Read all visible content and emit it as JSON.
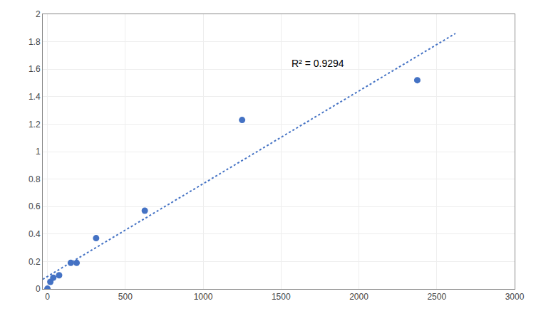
{
  "chart_data": {
    "type": "scatter",
    "series": [
      {
        "type": "line",
        "x": [
          -30,
          2620
        ],
        "values": [
          0.070571984,
          1.8601602463
        ],
        "color": "#4472C4",
        "line_style": "dotted"
      },
      {
        "type": "scatter",
        "x": [
          0,
          18.75,
          37.5,
          75,
          150,
          187.5,
          312.5,
          625,
          1250,
          2375
        ],
        "values": [
          0.002,
          0.052,
          0.082,
          0.1,
          0.19,
          0.19,
          0.37,
          0.57,
          1.23,
          1.52
        ],
        "color": "#4472C4",
        "marker": "circle"
      }
    ],
    "annotations": [
      {
        "text": "R² = 0.9294",
        "x": 1560,
        "y": 1.645
      }
    ],
    "xlim": [
      -30,
      3000
    ],
    "ylim": [
      0,
      2.0
    ],
    "xticks": [
      0,
      500,
      1000,
      1500,
      2000,
      2500,
      3000
    ],
    "yticks": [
      0,
      0.2,
      0.4,
      0.6,
      0.8,
      1,
      1.2,
      1.4,
      1.6,
      1.8,
      2
    ],
    "grid": true
  }
}
